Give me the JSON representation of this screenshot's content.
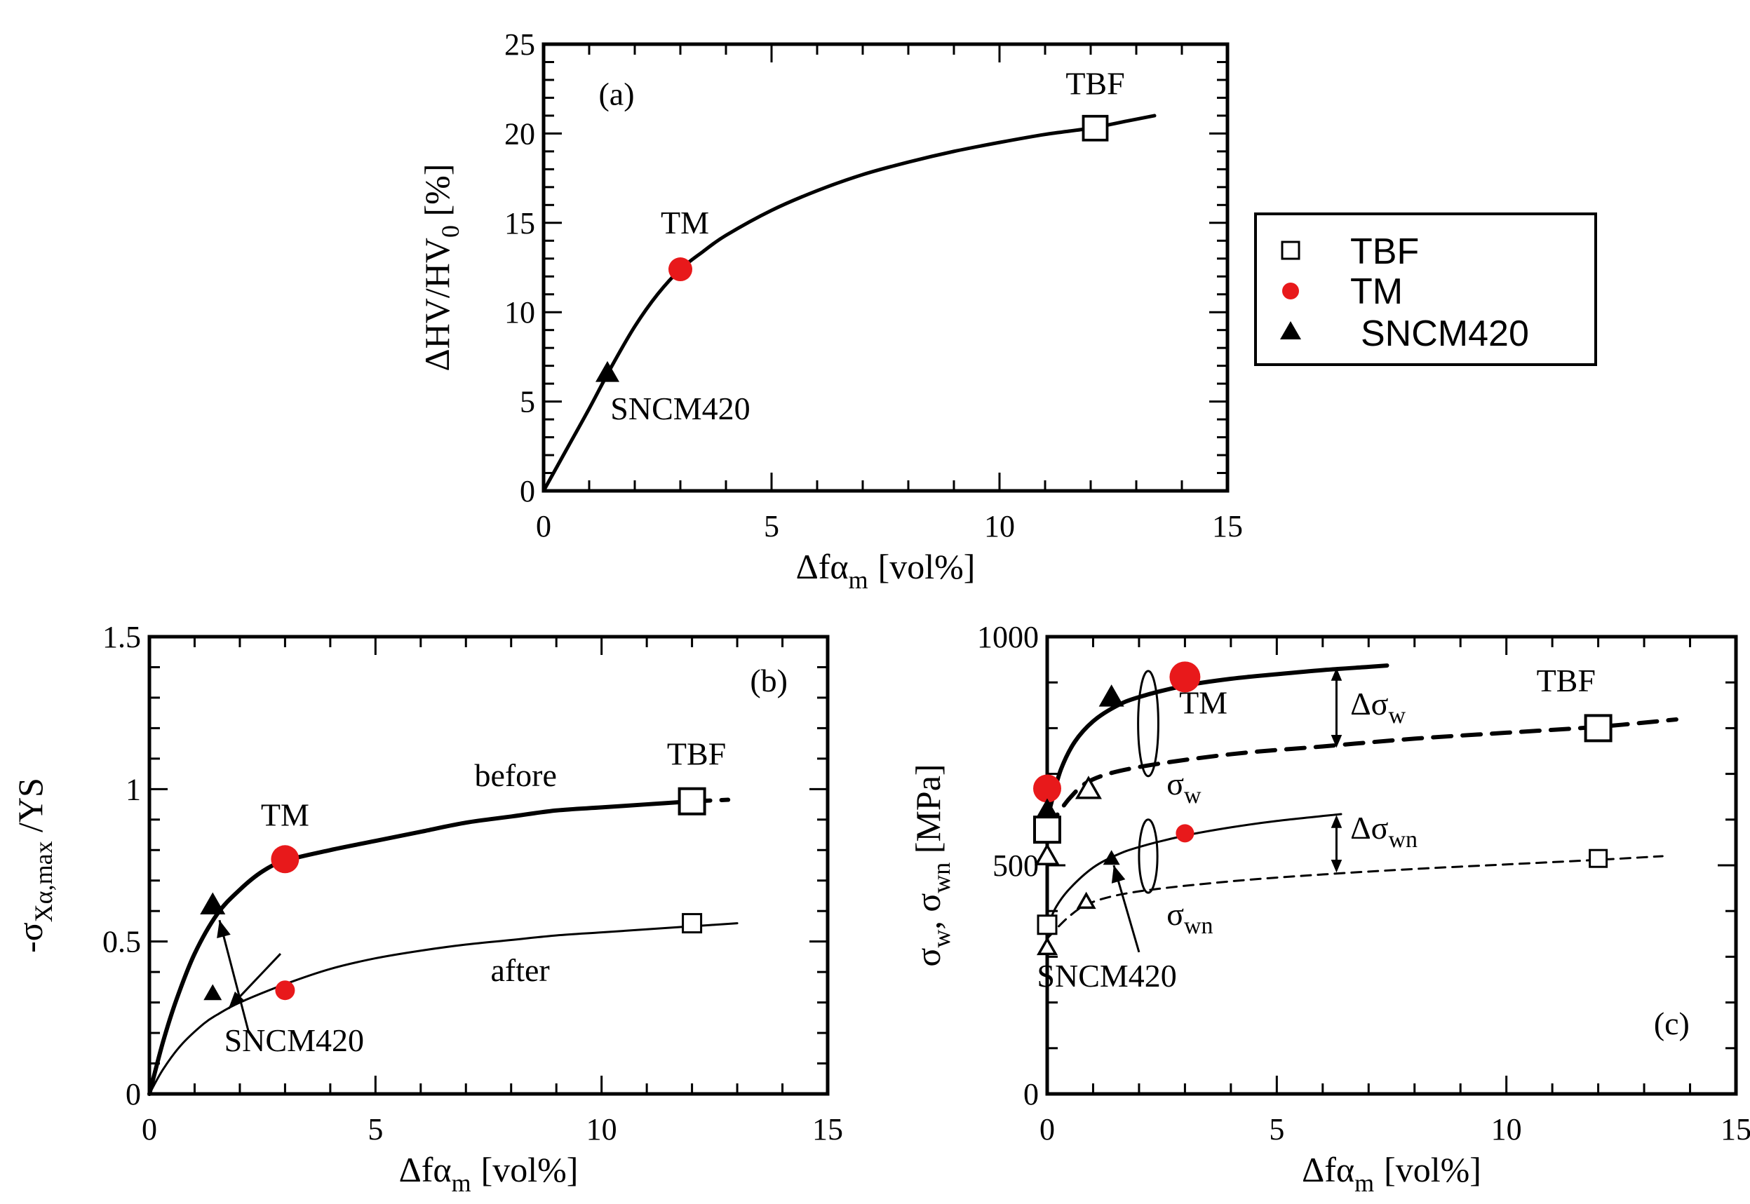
{
  "figure": {
    "legend": {
      "items": [
        {
          "label": "TBF",
          "marker": "open-square"
        },
        {
          "label": "TM",
          "marker": "filled-circle",
          "color": "#e8191b"
        },
        {
          "label": "SNCM420",
          "marker": "filled-triangle"
        }
      ]
    }
  },
  "chart_data": [
    {
      "id": "a",
      "type": "line",
      "panel_label": "(a)",
      "title": "",
      "xlabel": "Δfα_m [vol%]",
      "xlabel_main": "Δfα",
      "xlabel_sub": "m",
      "xlabel_unit": "[vol%]",
      "ylabel": "ΔHV/HV_0 [%]",
      "ylabel_main": "ΔHV/HV",
      "ylabel_sub": "0",
      "ylabel_unit": "[%]",
      "xlim": [
        0,
        15
      ],
      "ylim": [
        0,
        25
      ],
      "xticks": [
        0,
        5,
        10,
        15
      ],
      "xtick_labels": [
        "0",
        "5",
        "10",
        "15"
      ],
      "yticks": [
        0,
        5,
        10,
        15,
        20,
        25
      ],
      "ytick_labels": [
        "0",
        "5",
        "10",
        "15",
        "20",
        "25"
      ],
      "x_minor": 1,
      "y_minor": 1,
      "curves": [
        {
          "name": "fit",
          "style": "solid",
          "width": 5,
          "points": [
            [
              0,
              0
            ],
            [
              0.5,
              2.3
            ],
            [
              1.0,
              4.6
            ],
            [
              1.5,
              7.0
            ],
            [
              2.0,
              9.2
            ],
            [
              2.5,
              11.0
            ],
            [
              3.0,
              12.4
            ],
            [
              3.5,
              13.4
            ],
            [
              4,
              14.3
            ],
            [
              5,
              15.7
            ],
            [
              6,
              16.8
            ],
            [
              7,
              17.7
            ],
            [
              8,
              18.4
            ],
            [
              9,
              19.0
            ],
            [
              10,
              19.5
            ],
            [
              11,
              19.95
            ],
            [
              12,
              20.3
            ],
            [
              12.8,
              20.7
            ],
            [
              13.4,
              21.0
            ]
          ]
        }
      ],
      "points": [
        {
          "series": "TBF",
          "x": 12.1,
          "y": 20.3,
          "marker": "open-square",
          "size": 34
        },
        {
          "series": "TM",
          "x": 3.0,
          "y": 12.4,
          "marker": "filled-circle",
          "size": 34,
          "color": "#e8191b"
        },
        {
          "series": "SNCM420",
          "x": 1.4,
          "y": 6.6,
          "marker": "filled-triangle",
          "size": 34
        }
      ],
      "annotations": [
        {
          "text": "TBF",
          "x": 12.1,
          "y": 22.2
        },
        {
          "text": "TM",
          "x": 3.1,
          "y": 14.4
        },
        {
          "text": "SNCM420",
          "x": 3.0,
          "y": 4.0
        }
      ],
      "panel_label_pos": {
        "x": 1.6,
        "y": 21.6
      }
    },
    {
      "id": "b",
      "type": "line",
      "panel_label": "(b)",
      "title": "",
      "xlabel": "Δfα_m [vol%]",
      "xlabel_main": "Δfα",
      "xlabel_sub": "m",
      "xlabel_unit": "[vol%]",
      "ylabel": "-σ_Xα,max/YS",
      "ylabel_main": "-σ",
      "ylabel_sub": "Xα,max",
      "ylabel_unit": "/YS",
      "xlim": [
        0,
        15
      ],
      "ylim": [
        0,
        1.5
      ],
      "xticks": [
        0,
        5,
        10,
        15
      ],
      "xtick_labels": [
        "0",
        "5",
        "10",
        "15"
      ],
      "yticks": [
        0,
        0.5,
        1,
        1.5
      ],
      "ytick_labels": [
        "0",
        "0.5",
        "1",
        "1.5"
      ],
      "x_minor": 1,
      "y_minor": 0.1,
      "curves": [
        {
          "name": "before",
          "style": "solid",
          "width": 6,
          "points": [
            [
              0,
              0
            ],
            [
              0.3,
              0.17
            ],
            [
              0.6,
              0.31
            ],
            [
              1.0,
              0.46
            ],
            [
              1.5,
              0.59
            ],
            [
              2.0,
              0.67
            ],
            [
              2.5,
              0.73
            ],
            [
              3.0,
              0.765
            ],
            [
              4,
              0.8
            ],
            [
              5,
              0.83
            ],
            [
              6,
              0.86
            ],
            [
              7,
              0.89
            ],
            [
              8,
              0.91
            ],
            [
              9,
              0.93
            ],
            [
              10,
              0.94
            ],
            [
              11,
              0.95
            ],
            [
              12,
              0.96
            ]
          ]
        },
        {
          "name": "before-ext",
          "style": "dashed",
          "width": 6,
          "points": [
            [
              12,
              0.96
            ],
            [
              12.8,
              0.965
            ]
          ]
        },
        {
          "name": "after",
          "style": "solid",
          "width": 3,
          "points": [
            [
              0,
              0
            ],
            [
              0.3,
              0.08
            ],
            [
              0.7,
              0.16
            ],
            [
              1.2,
              0.23
            ],
            [
              1.5,
              0.26
            ],
            [
              2,
              0.3
            ],
            [
              3,
              0.36
            ],
            [
              4,
              0.41
            ],
            [
              5,
              0.445
            ],
            [
              6,
              0.47
            ],
            [
              7,
              0.49
            ],
            [
              8,
              0.505
            ],
            [
              9,
              0.52
            ],
            [
              10,
              0.53
            ],
            [
              11,
              0.54
            ],
            [
              12,
              0.55
            ],
            [
              13,
              0.56
            ]
          ]
        }
      ],
      "points": [
        {
          "series": "TBF",
          "x": 12.0,
          "y": 0.96,
          "marker": "open-square",
          "size": 36
        },
        {
          "series": "TM",
          "x": 3.0,
          "y": 0.77,
          "marker": "filled-circle",
          "size": 40,
          "color": "#e8191b"
        },
        {
          "series": "SNCM420",
          "x": 1.4,
          "y": 0.62,
          "marker": "filled-triangle",
          "size": 36
        },
        {
          "series": "TBF",
          "x": 12.0,
          "y": 0.56,
          "marker": "open-square",
          "size": 26
        },
        {
          "series": "TM",
          "x": 3.0,
          "y": 0.34,
          "marker": "filled-circle",
          "size": 28,
          "color": "#e8191b"
        },
        {
          "series": "SNCM420",
          "x": 1.4,
          "y": 0.33,
          "marker": "filled-triangle",
          "size": 26
        }
      ],
      "annotations": [
        {
          "text": "before",
          "x": 8.1,
          "y": 1.01
        },
        {
          "text": "after",
          "x": 8.2,
          "y": 0.37
        },
        {
          "text": "TM",
          "x": 3.0,
          "y": 0.88
        },
        {
          "text": "TBF",
          "x": 12.1,
          "y": 1.08
        },
        {
          "text": "SNCM420",
          "x": 3.2,
          "y": 0.14
        }
      ],
      "arrows": [
        {
          "from": [
            2.2,
            0.2
          ],
          "to": [
            1.55,
            0.57
          ]
        },
        {
          "from": [
            2.9,
            0.46
          ],
          "to": [
            1.75,
            0.28
          ]
        }
      ],
      "panel_label_pos": {
        "x": 13.7,
        "y": 1.32
      }
    },
    {
      "id": "c",
      "type": "line",
      "panel_label": "(c)",
      "title": "",
      "xlabel": "Δfα_m [vol%]",
      "xlabel_main": "Δfα",
      "xlabel_sub": "m",
      "xlabel_unit": "[vol%]",
      "ylabel": "σ_w, σ_wn [MPa]",
      "ylabel_p1": "σ",
      "ylabel_s1": "w",
      "ylabel_p2": ", σ",
      "ylabel_s2": "wn",
      "ylabel_unit": "[MPa]",
      "xlim": [
        0,
        15
      ],
      "ylim": [
        0,
        1000
      ],
      "xticks": [
        0,
        5,
        10,
        15
      ],
      "xtick_labels": [
        "0",
        "5",
        "10",
        "15"
      ],
      "yticks": [
        0,
        500,
        1000
      ],
      "ytick_labels": [
        "0",
        "500",
        "1000"
      ],
      "x_minor": 1,
      "y_minor": 100,
      "curves": [
        {
          "name": "sigma_w-after",
          "style": "solid",
          "width": 6,
          "points": [
            [
              0,
              600
            ],
            [
              0.1,
              640
            ],
            [
              0.3,
              710
            ],
            [
              0.6,
              770
            ],
            [
              1,
              815
            ],
            [
              1.5,
              848
            ],
            [
              2,
              868
            ],
            [
              3,
              893
            ],
            [
              4,
              908
            ],
            [
              5,
              918
            ],
            [
              6,
              927
            ],
            [
              7,
              934
            ],
            [
              7.4,
              937
            ]
          ]
        },
        {
          "name": "sigma_w-before",
          "style": "dashed",
          "width": 6,
          "points": [
            [
              0,
              578
            ],
            [
              0.5,
              648
            ],
            [
              1,
              688
            ],
            [
              2,
              715
            ],
            [
              4,
              743
            ],
            [
              6,
              760
            ],
            [
              8,
              777
            ],
            [
              10,
              790
            ],
            [
              12,
              803
            ],
            [
              13.7,
              819
            ]
          ]
        },
        {
          "name": "sigma_wn-after",
          "style": "solid",
          "width": 3,
          "points": [
            [
              0,
              365
            ],
            [
              0.2,
              410
            ],
            [
              0.5,
              450
            ],
            [
              1,
              495
            ],
            [
              1.5,
              522
            ],
            [
              2,
              540
            ],
            [
              3,
              565
            ],
            [
              4,
              583
            ],
            [
              5,
              597
            ],
            [
              6.4,
              612
            ]
          ]
        },
        {
          "name": "sigma_wn-before",
          "style": "dashed",
          "width": 3,
          "points": [
            [
              0,
              340
            ],
            [
              0.5,
              390
            ],
            [
              1,
              420
            ],
            [
              2,
              443
            ],
            [
              4,
              465
            ],
            [
              6,
              480
            ],
            [
              8,
              492
            ],
            [
              10,
              502
            ],
            [
              12,
              512
            ],
            [
              13.4,
              520
            ]
          ]
        }
      ],
      "points": [
        {
          "series": "TM",
          "x": 3.0,
          "y": 912,
          "marker": "filled-circle",
          "size": 44,
          "color": "#e8191b"
        },
        {
          "series": "SNCM420",
          "x": 1.4,
          "y": 868,
          "marker": "filled-triangle",
          "size": 36
        },
        {
          "series": "TM",
          "x": 0.0,
          "y": 668,
          "marker": "filled-circle",
          "size": 40,
          "color": "#e8191b"
        },
        {
          "series": "SNCM420",
          "x": 0.0,
          "y": 622,
          "marker": "filled-triangle",
          "size": 32
        },
        {
          "series": "TBF",
          "x": 0.0,
          "y": 578,
          "marker": "open-square",
          "size": 36
        },
        {
          "series": "SNCM420",
          "x": 0.9,
          "y": 666,
          "marker": "open-triangle",
          "size": 32
        },
        {
          "series": "TBF",
          "x": 12.0,
          "y": 800,
          "marker": "open-square",
          "size": 36
        },
        {
          "series": "TM",
          "x": 3.0,
          "y": 570,
          "marker": "filled-circle",
          "size": 26,
          "color": "#e8191b"
        },
        {
          "series": "SNCM420",
          "x": 1.4,
          "y": 515,
          "marker": "filled-triangle",
          "size": 24
        },
        {
          "series": "SNCM420",
          "x": 0.0,
          "y": 520,
          "marker": "open-triangle",
          "size": 30
        },
        {
          "series": "SNCM420",
          "x": 0.85,
          "y": 420,
          "marker": "open-triangle",
          "size": 22
        },
        {
          "series": "TBF",
          "x": 0.0,
          "y": 370,
          "marker": "open-square",
          "size": 26
        },
        {
          "series": "SNCM420",
          "x": 0.0,
          "y": 320,
          "marker": "open-triangle",
          "size": 24
        },
        {
          "series": "TBF",
          "x": 12.0,
          "y": 515,
          "marker": "open-square",
          "size": 24
        }
      ],
      "annotations": [
        {
          "text": "TM",
          "x": 3.4,
          "y": 832
        },
        {
          "text": "TBF",
          "x": 11.3,
          "y": 880
        },
        {
          "text": "SNCM420",
          "x": 1.3,
          "y": 235
        }
      ],
      "subscript_labels": [
        {
          "main": "σ",
          "sub": "w",
          "x": 2.6,
          "y": 655
        },
        {
          "main": "σ",
          "sub": "wn",
          "x": 2.6,
          "y": 370
        },
        {
          "main": "Δσ",
          "sub": "w",
          "x": 6.6,
          "y": 830
        },
        {
          "main": "Δσ",
          "sub": "wn",
          "x": 6.6,
          "y": 558
        }
      ],
      "double_arrows": [
        {
          "x": 6.3,
          "y1": 932,
          "y2": 757
        },
        {
          "x": 6.3,
          "y1": 610,
          "y2": 484
        }
      ],
      "loops": [
        {
          "cx": 2.2,
          "cy": 810,
          "rx": 0.22,
          "ry": 115
        },
        {
          "cx": 2.2,
          "cy": 520,
          "rx": 0.2,
          "ry": 80
        }
      ],
      "arrows": [
        {
          "from": [
            2.0,
            310
          ],
          "to": [
            1.45,
            500
          ]
        }
      ],
      "panel_label_pos": {
        "x": 13.6,
        "y": 130
      }
    }
  ]
}
